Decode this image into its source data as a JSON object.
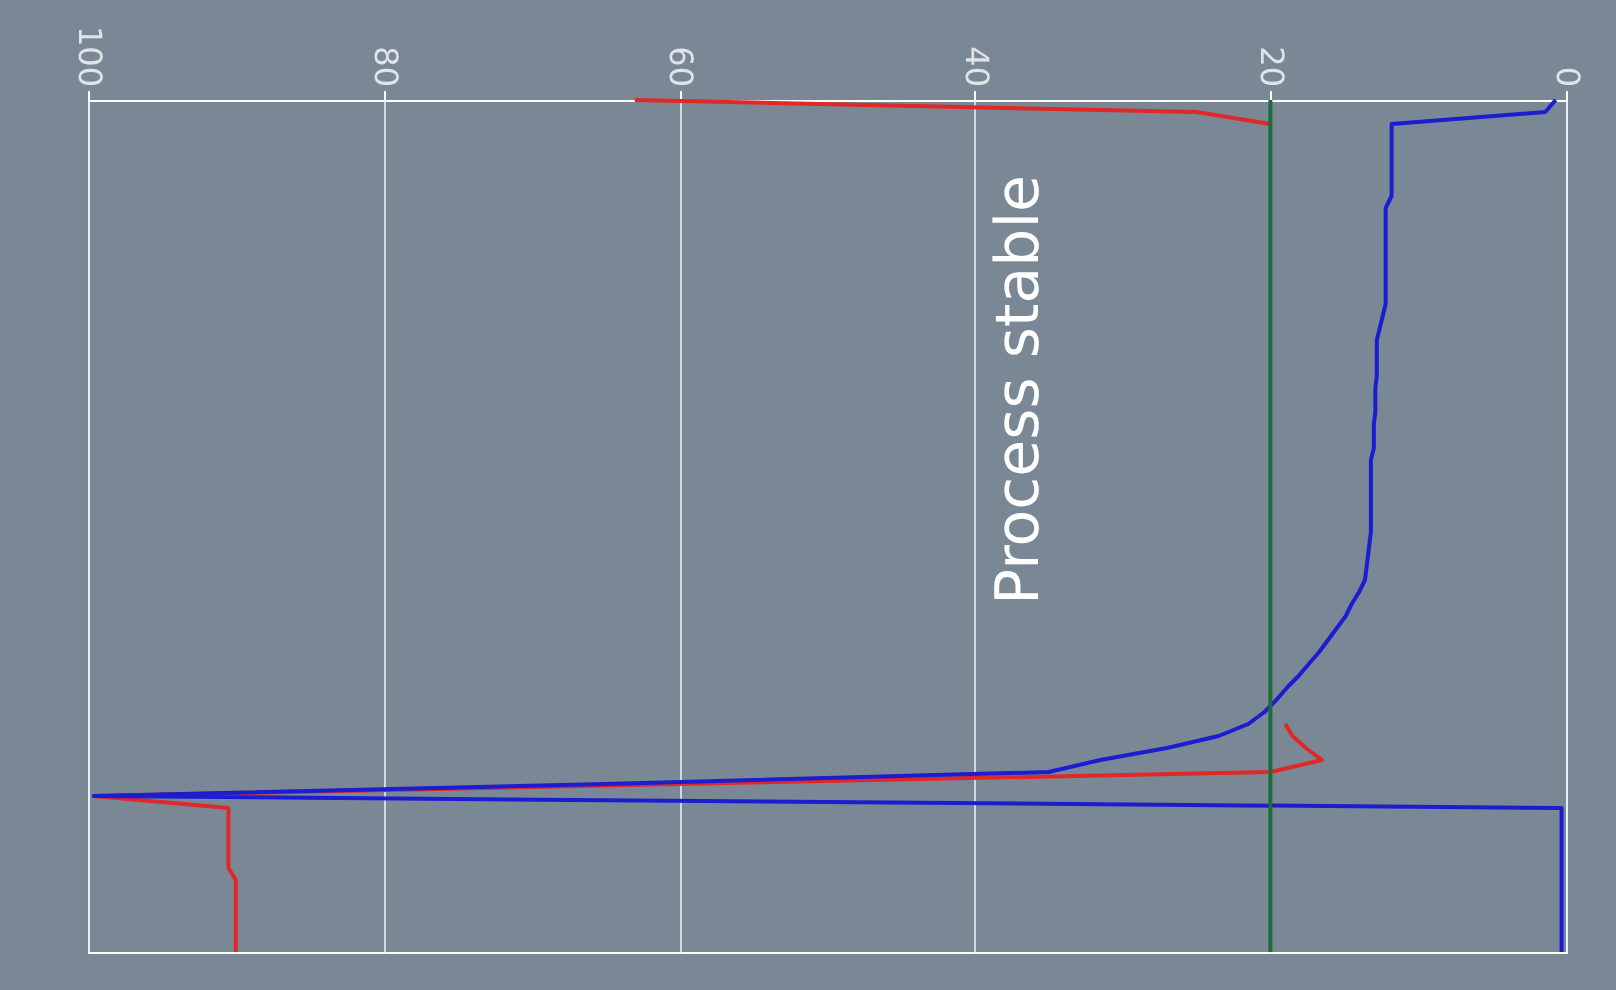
{
  "chart_data": {
    "type": "line",
    "orientation": "horizontal",
    "categories": [
      null,
      null,
      null,
      null,
      null,
      null,
      null,
      null,
      null,
      null,
      null,
      null,
      null,
      null,
      null,
      null,
      null,
      null,
      null,
      null,
      null,
      null,
      null,
      null,
      null,
      null,
      null,
      null,
      null,
      null,
      null,
      null,
      null,
      null,
      null,
      null,
      null,
      null,
      null,
      null,
      null,
      null,
      null,
      null,
      null,
      null,
      null,
      null,
      null,
      null,
      null,
      null,
      null,
      null,
      null,
      null,
      null,
      null,
      null,
      null,
      null,
      null,
      null,
      null,
      null,
      null,
      null,
      null,
      null,
      null,
      null,
      null
    ],
    "series": [
      {
        "color": "#e02828",
        "values": [
          63,
          25,
          20,
          null,
          null,
          null,
          null,
          null,
          null,
          null,
          null,
          null,
          null,
          null,
          null,
          null,
          null,
          null,
          null,
          null,
          null,
          null,
          null,
          null,
          null,
          null,
          null,
          null,
          null,
          null,
          null,
          null,
          null,
          null,
          null,
          null,
          null,
          null,
          null,
          null,
          null,
          null,
          null,
          null,
          null,
          null,
          null,
          null,
          null,
          null,
          null,
          null,
          19,
          18.5,
          17.6,
          16.5,
          20,
          60,
          99.6,
          90.5,
          90.5,
          90.5,
          90.5,
          90.5,
          90.5,
          90,
          90,
          90,
          90,
          90,
          90,
          90
        ]
      },
      {
        "color": "#1c1cd0",
        "values": [
          0.7,
          1.4,
          11.8,
          11.8,
          11.8,
          11.8,
          11.8,
          11.8,
          11.8,
          12.2,
          12.2,
          12.2,
          12.2,
          12.2,
          12.2,
          12.2,
          12.2,
          12.2,
          12.4,
          12.6,
          12.8,
          12.8,
          12.8,
          12.8,
          12.9,
          12.9,
          12.9,
          13.0,
          13.0,
          13.0,
          13.2,
          13.2,
          13.2,
          13.2,
          13.2,
          13.2,
          13.2,
          13.3,
          13.4,
          13.5,
          13.6,
          14.0,
          14.5,
          14.9,
          15.5,
          16.1,
          16.7,
          17.4,
          18.1,
          18.9,
          19.6,
          20.4,
          21.5,
          23.5,
          27,
          31.5,
          35,
          65,
          99.6,
          0.3,
          0.3,
          0.3,
          0.3,
          0.3,
          0.3,
          0.3,
          0.3,
          0.3,
          0.3,
          0.3,
          0.3,
          0.3
        ]
      }
    ],
    "xlim": [
      100,
      0
    ],
    "xticks": [
      100,
      80,
      60,
      40,
      20,
      0
    ],
    "ref_lines": [
      {
        "axis": "x",
        "value": 20,
        "color": "#1e6b3c"
      }
    ],
    "annotations": [
      "Process stable"
    ],
    "grid": "x",
    "marker": "none",
    "line_style": "solid"
  }
}
